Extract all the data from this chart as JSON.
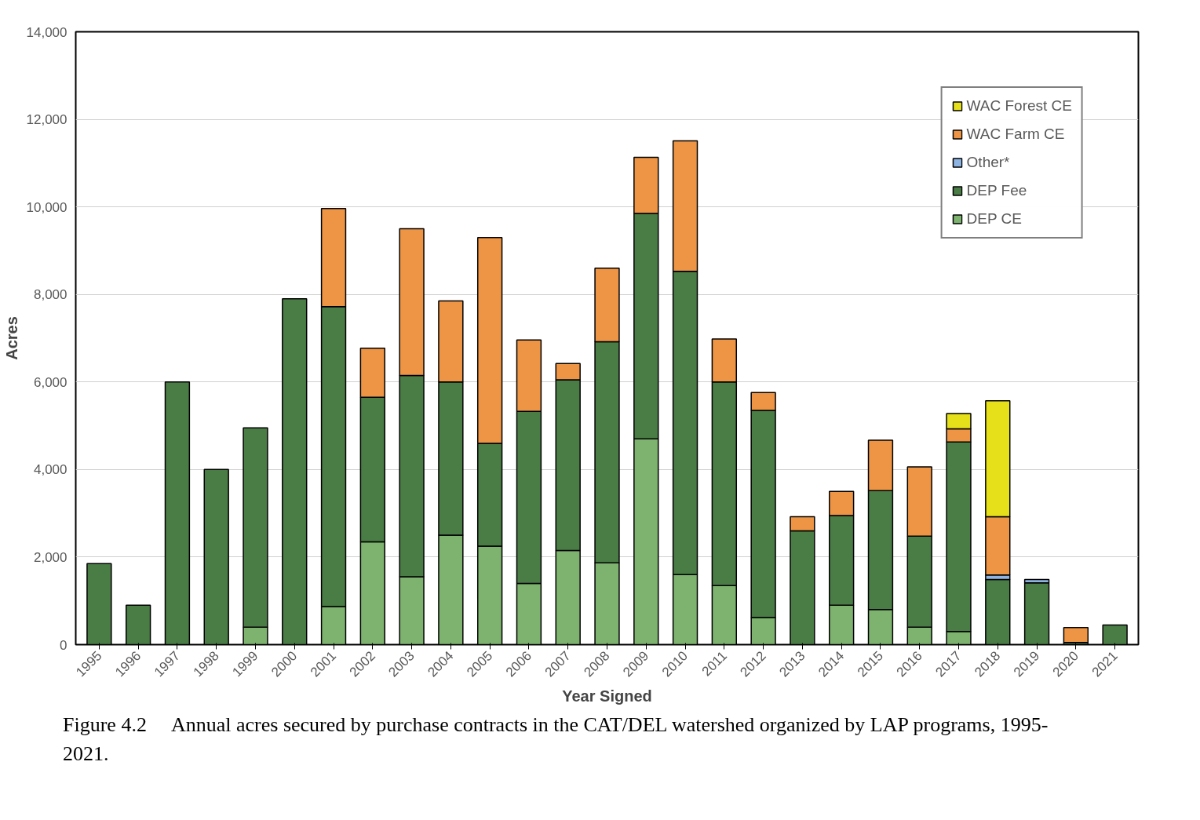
{
  "chart_data": {
    "type": "bar",
    "stacked": true,
    "xlabel": "Year Signed",
    "ylabel": "Acres",
    "categories": [
      "1995",
      "1996",
      "1997",
      "1998",
      "1999",
      "2000",
      "2001",
      "2002",
      "2003",
      "2004",
      "2005",
      "2006",
      "2007",
      "2008",
      "2009",
      "2010",
      "2011",
      "2012",
      "2013",
      "2014",
      "2015",
      "2016",
      "2017",
      "2018",
      "2019",
      "2020",
      "2021"
    ],
    "series": [
      {
        "name": "DEP CE",
        "color": "#7db36f",
        "values": [
          null,
          null,
          null,
          null,
          400,
          null,
          870,
          2350,
          1550,
          2500,
          2250,
          1400,
          2150,
          1870,
          4700,
          1600,
          1350,
          620,
          null,
          900,
          800,
          400,
          300,
          null,
          null,
          null,
          null
        ]
      },
      {
        "name": "DEP Fee",
        "color": "#4a7c45",
        "values": [
          1850,
          900,
          6000,
          4000,
          4550,
          7900,
          6850,
          3300,
          4600,
          3500,
          2350,
          3930,
          3900,
          5050,
          5150,
          6930,
          4650,
          4730,
          2600,
          2050,
          2720,
          2080,
          4330,
          1490,
          1410,
          50,
          450
        ]
      },
      {
        "name": "Other*",
        "color": "#8db4e2",
        "values": [
          null,
          null,
          null,
          null,
          null,
          null,
          null,
          null,
          null,
          null,
          null,
          null,
          null,
          null,
          null,
          null,
          null,
          null,
          null,
          null,
          null,
          null,
          null,
          100,
          80,
          null,
          null
        ]
      },
      {
        "name": "WAC Farm CE",
        "color": "#ed9445",
        "values": [
          null,
          null,
          null,
          null,
          null,
          null,
          2240,
          1120,
          3350,
          1850,
          4700,
          1630,
          370,
          1680,
          1280,
          2980,
          980,
          410,
          320,
          550,
          1150,
          1580,
          300,
          1330,
          null,
          340,
          null
        ]
      },
      {
        "name": "WAC Forest CE",
        "color": "#e5e01a",
        "values": [
          null,
          null,
          null,
          null,
          null,
          null,
          null,
          null,
          null,
          null,
          null,
          null,
          null,
          null,
          null,
          null,
          null,
          null,
          null,
          null,
          null,
          null,
          350,
          2650,
          null,
          null,
          null
        ]
      }
    ],
    "ylim": [
      0,
      14000
    ],
    "yticks": [
      {
        "value": 0,
        "label": "0"
      },
      {
        "value": 2000,
        "label": "2,000"
      },
      {
        "value": 4000,
        "label": "4,000"
      },
      {
        "value": 6000,
        "label": "6,000"
      },
      {
        "value": 8000,
        "label": "8,000"
      },
      {
        "value": 10000,
        "label": "10,000"
      },
      {
        "value": 12000,
        "label": "12,000"
      },
      {
        "value": 14000,
        "label": "14,000"
      }
    ],
    "grid": "y",
    "legend": "top right",
    "annotations": [
      "Figure 4.2     Annual acres secured by purchase contracts in the CAT/DEL watershed organized by LAP programs, 1995-2021."
    ]
  }
}
